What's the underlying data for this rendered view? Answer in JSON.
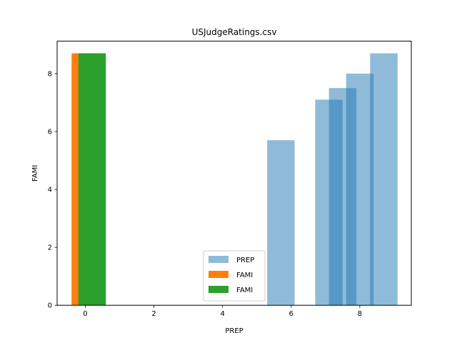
{
  "chart_data": {
    "type": "bar",
    "title": "USJudgeRatings.csv",
    "xlabel": "PREP",
    "ylabel": "FAMI",
    "xlim": [
      -0.82,
      9.5
    ],
    "ylim": [
      0,
      9.12
    ],
    "xticks": [
      0,
      2,
      4,
      6,
      8
    ],
    "yticks": [
      0,
      2,
      4,
      6,
      8
    ],
    "grid": false,
    "legend_position": "lower center",
    "series": [
      {
        "name": "PREP",
        "color": "#1f77b4",
        "opacity": 0.5,
        "bars": [
          {
            "x": 5.7,
            "height": 5.7
          },
          {
            "x": 7.1,
            "height": 7.1
          },
          {
            "x": 7.5,
            "height": 7.5
          },
          {
            "x": 8.0,
            "height": 8.0
          },
          {
            "x": 8.7,
            "height": 8.7
          }
        ]
      },
      {
        "name": "FAMI",
        "color": "#ff7f0e",
        "opacity": 1,
        "bars": [
          {
            "x": 0,
            "height": 8.7
          }
        ]
      },
      {
        "name": "FAMI",
        "color": "#2ca02c",
        "opacity": 1,
        "bars": [
          {
            "x": 0.2,
            "height": 8.7
          }
        ]
      }
    ]
  }
}
